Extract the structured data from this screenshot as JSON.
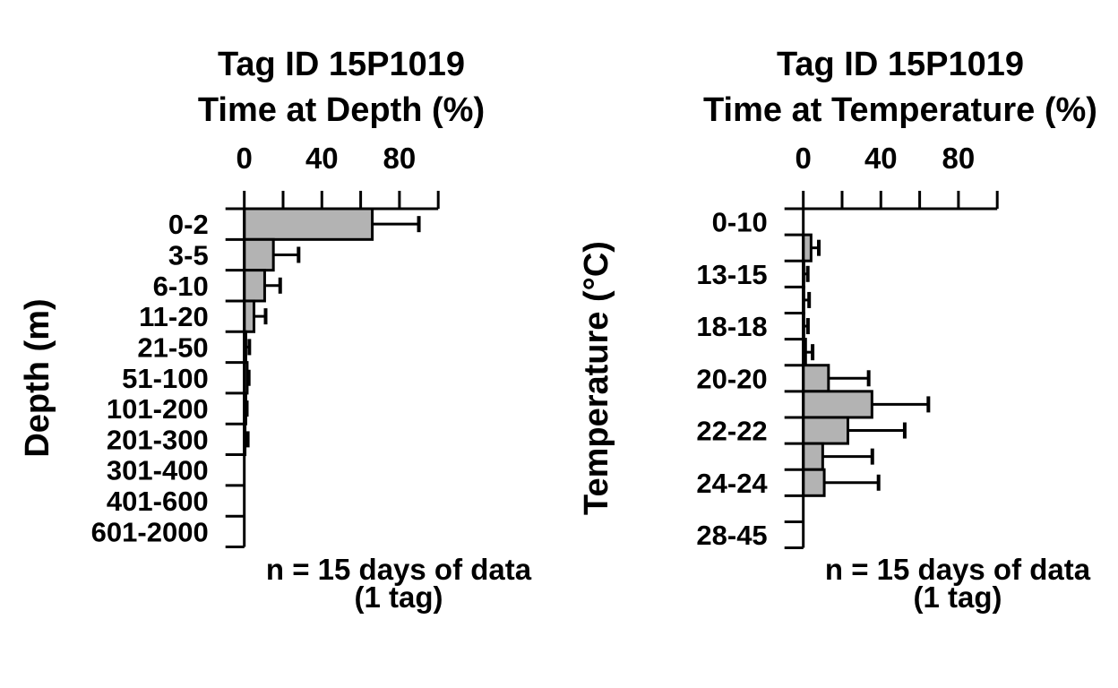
{
  "figure": {
    "background_color": "#ffffff",
    "text_color": "#000000",
    "bar_fill_color": "#b3b3b3",
    "bar_border_color": "#000000"
  },
  "chart_data": [
    {
      "type": "bar",
      "orientation": "horizontal",
      "title": "Tag ID 15P1019",
      "subtitle": "Time at Depth (%)",
      "ylabel": "Depth (m)",
      "xlabel": "",
      "xlim": [
        0,
        100
      ],
      "x_major_tick_labels": [
        "0",
        "40",
        "80"
      ],
      "x_major_tick_values": [
        0,
        40,
        80
      ],
      "x_minor_tick_values": [
        0,
        20,
        40,
        60,
        80,
        100
      ],
      "categories": [
        "0-2",
        "3-5",
        "6-10",
        "11-20",
        "21-50",
        "51-100",
        "101-200",
        "201-300",
        "301-400",
        "401-600",
        "601-2000"
      ],
      "values": [
        66,
        15,
        10.5,
        5,
        0.8,
        1.5,
        0.8,
        0.4,
        0,
        0,
        0
      ],
      "error_upper": [
        90,
        28,
        18.5,
        11,
        2.6,
        2.3,
        1.3,
        1.8,
        0,
        0,
        0
      ],
      "caption_line1": "n = 15 days of data",
      "caption_line2": "(1 tag)",
      "legend": "none",
      "grid": false
    },
    {
      "type": "bar",
      "orientation": "horizontal",
      "title": "Tag ID 15P1019",
      "subtitle": "Time at Temperature (%)",
      "ylabel": "Temperature (°C)",
      "xlabel": "",
      "xlim": [
        0,
        100
      ],
      "x_major_tick_labels": [
        "0",
        "40",
        "80"
      ],
      "x_major_tick_values": [
        0,
        40,
        80
      ],
      "x_minor_tick_values": [
        0,
        20,
        40,
        60,
        80,
        100
      ],
      "categories": [
        "0-10",
        "",
        "13-15",
        "",
        "18-18",
        "",
        "20-20",
        "",
        "22-22",
        "",
        "24-24",
        "",
        "28-45"
      ],
      "values": [
        0,
        4,
        0.3,
        0.3,
        0.3,
        1.2,
        13,
        35.4,
        23,
        10,
        10.8,
        0,
        0
      ],
      "error_upper": [
        0,
        8,
        2.3,
        3,
        2.4,
        4.8,
        33.7,
        64.5,
        52.3,
        35.6,
        38.8,
        0,
        0
      ],
      "caption_line1": "n = 15 days of data",
      "caption_line2": "(1 tag)",
      "legend": "none",
      "grid": false
    }
  ]
}
